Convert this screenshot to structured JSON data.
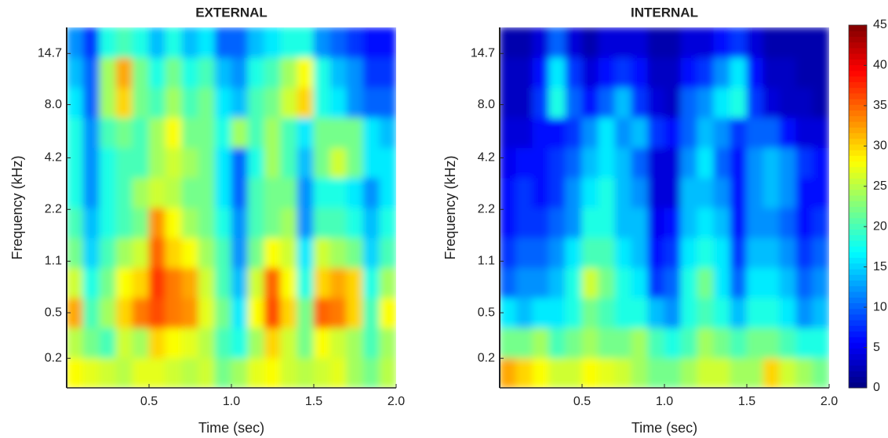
{
  "chart_data": [
    {
      "type": "heatmap",
      "title": "EXTERNAL",
      "xlabel": "Time (sec)",
      "ylabel": "Frequency (kHz)",
      "xlim": [
        0,
        2.0
      ],
      "xticks": [
        0.5,
        {
          "value": 1,
          "label": "1.0"
        },
        1.5,
        {
          "value": 2,
          "label": "2.0"
        }
      ],
      "ylim": [
        0.075,
        20
      ],
      "yscale": "erb",
      "yticks": [
        0.2,
        0.5,
        1.1,
        2.2,
        4.2,
        {
          "value": 8,
          "label": "8.0"
        },
        14.7
      ],
      "colormap": "jet",
      "clim": [
        0,
        45
      ],
      "z": [
        [
          28,
          27,
          26,
          25,
          27,
          27,
          26,
          25,
          26,
          22,
          24,
          27,
          28,
          26,
          25,
          26,
          27,
          24,
          22,
          25
        ],
        [
          25,
          22,
          20,
          26,
          24,
          30,
          28,
          27,
          25,
          20,
          18,
          24,
          30,
          26,
          22,
          28,
          26,
          24,
          20,
          24
        ],
        [
          32,
          20,
          24,
          30,
          34,
          36,
          34,
          33,
          27,
          22,
          16,
          28,
          36,
          30,
          22,
          35,
          34,
          30,
          20,
          28
        ],
        [
          26,
          18,
          22,
          28,
          30,
          37,
          34,
          32,
          26,
          20,
          14,
          26,
          35,
          28,
          18,
          30,
          32,
          30,
          18,
          24
        ],
        [
          22,
          15,
          20,
          24,
          26,
          35,
          30,
          28,
          24,
          20,
          12,
          22,
          28,
          26,
          16,
          26,
          24,
          22,
          15,
          20
        ],
        [
          20,
          14,
          18,
          20,
          22,
          33,
          28,
          24,
          22,
          18,
          12,
          20,
          22,
          24,
          12,
          20,
          20,
          18,
          14,
          18
        ],
        [
          18,
          12,
          18,
          20,
          24,
          26,
          25,
          22,
          22,
          16,
          10,
          20,
          22,
          22,
          12,
          18,
          18,
          16,
          12,
          16
        ],
        [
          18,
          12,
          18,
          20,
          20,
          24,
          26,
          24,
          22,
          16,
          10,
          18,
          24,
          20,
          14,
          22,
          26,
          22,
          16,
          16
        ],
        [
          18,
          12,
          20,
          22,
          20,
          24,
          28,
          22,
          22,
          18,
          24,
          20,
          24,
          20,
          16,
          22,
          22,
          22,
          16,
          14
        ],
        [
          16,
          10,
          24,
          30,
          22,
          20,
          24,
          20,
          22,
          16,
          14,
          20,
          22,
          26,
          30,
          18,
          16,
          12,
          10,
          10
        ],
        [
          14,
          10,
          24,
          32,
          22,
          18,
          22,
          18,
          20,
          14,
          12,
          18,
          20,
          24,
          28,
          18,
          14,
          12,
          8,
          8
        ],
        [
          12,
          8,
          18,
          20,
          18,
          14,
          18,
          14,
          16,
          10,
          10,
          14,
          16,
          18,
          18,
          12,
          10,
          8,
          6,
          6
        ]
      ]
    },
    {
      "type": "heatmap",
      "title": "INTERNAL",
      "xlabel": "Time (sec)",
      "ylabel": "Frequency (kHz)",
      "xlim": [
        0,
        2.0
      ],
      "xticks": [
        0.5,
        {
          "value": 1,
          "label": "1.0"
        },
        1.5,
        {
          "value": 2,
          "label": "2.0"
        }
      ],
      "ylim": [
        0.075,
        20
      ],
      "yscale": "erb",
      "yticks": [
        0.2,
        0.5,
        1.1,
        2.2,
        4.2,
        {
          "value": 8,
          "label": "8.0"
        },
        14.7
      ],
      "colormap": "jet",
      "clim": [
        0,
        45
      ],
      "colorbar": {
        "ticks": [
          0,
          5,
          10,
          15,
          20,
          25,
          30,
          35,
          40,
          45
        ]
      },
      "z": [
        [
          32,
          30,
          28,
          26,
          26,
          28,
          27,
          26,
          24,
          22,
          22,
          24,
          26,
          26,
          24,
          24,
          30,
          26,
          24,
          22
        ],
        [
          22,
          22,
          24,
          20,
          22,
          24,
          22,
          22,
          24,
          20,
          18,
          20,
          24,
          22,
          20,
          22,
          22,
          20,
          18,
          18
        ],
        [
          16,
          14,
          16,
          16,
          18,
          22,
          20,
          18,
          18,
          14,
          12,
          18,
          20,
          18,
          14,
          18,
          18,
          16,
          12,
          14
        ],
        [
          10,
          12,
          12,
          14,
          18,
          26,
          22,
          18,
          16,
          8,
          10,
          18,
          22,
          16,
          10,
          16,
          16,
          14,
          10,
          12
        ],
        [
          8,
          10,
          10,
          12,
          16,
          20,
          20,
          16,
          14,
          6,
          8,
          16,
          18,
          16,
          8,
          14,
          14,
          12,
          8,
          10
        ],
        [
          6,
          8,
          8,
          10,
          12,
          18,
          18,
          14,
          14,
          5,
          6,
          14,
          16,
          14,
          6,
          12,
          12,
          10,
          6,
          8
        ],
        [
          6,
          8,
          6,
          8,
          12,
          16,
          18,
          14,
          12,
          4,
          4,
          14,
          14,
          12,
          6,
          12,
          14,
          12,
          6,
          6
        ],
        [
          5,
          6,
          6,
          8,
          10,
          14,
          16,
          14,
          10,
          4,
          4,
          12,
          16,
          10,
          6,
          12,
          14,
          12,
          8,
          6
        ],
        [
          4,
          4,
          6,
          6,
          8,
          12,
          16,
          12,
          14,
          8,
          6,
          10,
          14,
          12,
          8,
          10,
          10,
          6,
          4,
          4
        ],
        [
          3,
          3,
          8,
          18,
          10,
          6,
          10,
          14,
          8,
          4,
          3,
          10,
          12,
          16,
          18,
          8,
          4,
          3,
          3,
          2
        ],
        [
          3,
          3,
          6,
          16,
          8,
          4,
          6,
          8,
          6,
          3,
          3,
          6,
          8,
          12,
          16,
          6,
          3,
          3,
          2,
          2
        ],
        [
          2,
          2,
          4,
          10,
          4,
          2,
          4,
          4,
          4,
          2,
          2,
          4,
          4,
          6,
          8,
          4,
          2,
          2,
          2,
          2
        ]
      ]
    }
  ]
}
